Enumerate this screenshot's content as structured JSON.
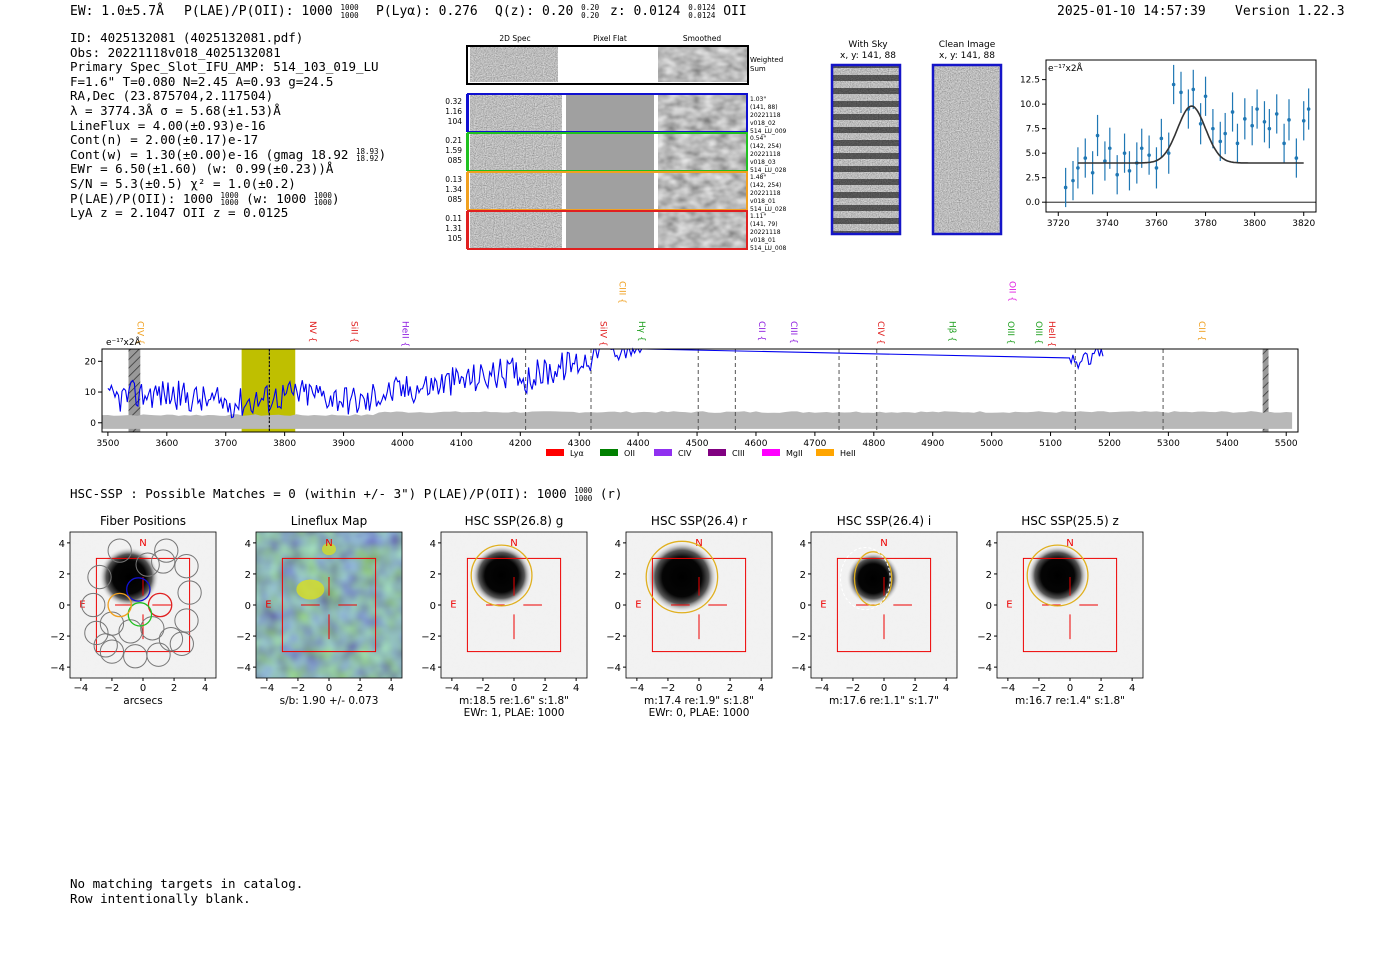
{
  "header": {
    "ew": "EW: 1.0±5.7Å",
    "plae": "P(LAE)/P(OII): 1000",
    "plae_hi": "1000",
    "plae_lo": "1000",
    "plya": "P(Lyα): 0.276",
    "qz": "Q(z): 0.20",
    "qz_hi": "0.20",
    "qz_lo": "0.20",
    "z": "z: 0.0124",
    "z_hi": "0.0124",
    "z_lo": "0.0124",
    "z_line": "OII",
    "timestamp": "2025-01-10 14:57:39",
    "version": "Version 1.22.3"
  },
  "info": {
    "id": "ID: 4025132081 (4025132081.pdf)",
    "obs": "Obs: 20221118v018_4025132081",
    "primary": "Primary Spec_Slot_IFU_AMP: 514_103_019_LU",
    "params": "F=1.6\"  T=0.080  N=2.45  A=0.93  g=24.5",
    "radec": "RA,Dec (23.875704,2.117504)",
    "lambda": "λ = 3774.3Å   σ = 5.68(±1.53)Å",
    "lineflux": "LineFlux = 4.00(±0.93)e-16",
    "contn": "Cont(n) = 2.00(±0.17)e-17",
    "contw": "Cont(w) = 1.30(±0.00)e-16 (gmag 18.92",
    "contw_hi": "18.93",
    "contw_lo": "18.92",
    "ewr": "EWr = 6.50(±1.60) (w: 0.99(±0.23))Å",
    "sn": "S/N = 5.3(±0.5)  χ² = 1.0(±0.2)",
    "plae": "P(LAE)/P(OII): 1000",
    "plae_hi": "1000",
    "plae_lo": "1000",
    "plae_w": "(w: 1000",
    "plae_w_hi": "1000",
    "plae_w_lo": "1000",
    "lyaz": "LyA z = 2.1047  OII z = 0.0125"
  },
  "cutouts": {
    "col_2d": "2D Spec",
    "col_flat": "Pixel Flat",
    "col_smooth": "Smoothed",
    "weighted": "Weighted",
    "sum": "Sum",
    "rows": [
      {
        "l1": "0.32",
        "l2": "1.16",
        "l3": "104",
        "r1": "1.03\"",
        "r2": "(141, 88)",
        "r3": "20221118",
        "r4": "v018_02",
        "r5": "514_LU_009",
        "color": "#1010d0"
      },
      {
        "l1": "0.21",
        "l2": "1.59",
        "l3": "085",
        "r1": "0.54\"",
        "r2": "(142, 254)",
        "r3": "20221118",
        "r4": "v018_03",
        "r5": "514_LU_028",
        "color": "#20c020"
      },
      {
        "l1": "0.13",
        "l2": "1.34",
        "l3": "085",
        "r1": "1.48\"",
        "r2": "(142, 254)",
        "r3": "20221118",
        "r4": "v018_01",
        "r5": "514_LU_028",
        "color": "#f0a020"
      },
      {
        "l1": "0.11",
        "l2": "1.31",
        "l3": "105",
        "r1": "1.11\"",
        "r2": "(141, 79)",
        "r3": "20221118",
        "r4": "v018_01",
        "r5": "514_LU_008",
        "color": "#e02020"
      }
    ]
  },
  "sky": {
    "with_sky": "With Sky",
    "with_sky_xy": "x, y: 141, 88",
    "clean": "Clean Image",
    "clean_xy": "x, y: 141, 88"
  },
  "fit_plot": {
    "units": "e⁻¹⁷x2Å",
    "xticks": [
      "3720",
      "3740",
      "3760",
      "3780",
      "3800",
      "3820"
    ],
    "yticks": [
      "0.0",
      "2.5",
      "5.0",
      "7.5",
      "10.0",
      "12.5"
    ]
  },
  "spectrum": {
    "units": "e⁻¹⁷x2Å",
    "xticks": [
      "3500",
      "3600",
      "3700",
      "3800",
      "3900",
      "4000",
      "4100",
      "4200",
      "4300",
      "4400",
      "4500",
      "4600",
      "4700",
      "4800",
      "4900",
      "5000",
      "5100",
      "5200",
      "5300",
      "5400",
      "5500"
    ],
    "yticks": [
      "0",
      "10",
      "20"
    ],
    "line_labels": [
      {
        "t": "CIV",
        "w": 3545,
        "c": "#f0a020",
        "row": 1
      },
      {
        "t": "NV",
        "w": 3838,
        "c": "#e02020",
        "row": 1
      },
      {
        "t": "SiII",
        "w": 3908,
        "c": "#e02020",
        "row": 1
      },
      {
        "t": "HeII",
        "w": 3995,
        "c": "#9020e0",
        "row": 1
      },
      {
        "t": "SiIV",
        "w": 4331,
        "c": "#e02020",
        "row": 1
      },
      {
        "t": "CIII",
        "w": 4363,
        "c": "#f0a020",
        "row": 0
      },
      {
        "t": "Hγ",
        "w": 4396,
        "c": "#20a020",
        "row": 1
      },
      {
        "t": "CII",
        "w": 4600,
        "c": "#9020e0",
        "row": 1
      },
      {
        "t": "CIII",
        "w": 4654,
        "c": "#9020e0",
        "row": 1
      },
      {
        "t": "CIV",
        "w": 4802,
        "c": "#e02020",
        "row": 1
      },
      {
        "t": "Hβ",
        "w": 4923,
        "c": "#20a020",
        "row": 1
      },
      {
        "t": "OII",
        "w": 5025,
        "c": "#e020e0",
        "row": 0
      },
      {
        "t": "OIII",
        "w": 5023,
        "c": "#20a020",
        "row": 1
      },
      {
        "t": "OIII",
        "w": 5070,
        "c": "#20a020",
        "row": 1
      },
      {
        "t": "HeII",
        "w": 5092,
        "c": "#e02020",
        "row": 1
      },
      {
        "t": "CII",
        "w": 5347,
        "c": "#f0a020",
        "row": 1
      }
    ],
    "legend": [
      {
        "t": "Lyα",
        "c": "#ff0000"
      },
      {
        "t": "OII",
        "c": "#008000"
      },
      {
        "t": "CIV",
        "c": "#9030f0"
      },
      {
        "t": "CIII",
        "c": "#800080"
      },
      {
        "t": "MgII",
        "c": "#ff00ff"
      },
      {
        "t": "HeII",
        "c": "#ffa500"
      }
    ]
  },
  "hsc": {
    "summary": "HSC-SSP : Possible Matches = 0 (within +/- 3\")  P(LAE)/P(OII): 1000",
    "summary_hi": "1000",
    "summary_lo": "1000",
    "summary_tail": "(r)",
    "ticks": [
      "−4",
      "−2",
      "0",
      "2",
      "4"
    ],
    "panels": [
      {
        "title": "Fiber Positions",
        "cap1": "arcsecs",
        "cap2": ""
      },
      {
        "title": "Lineflux Map",
        "cap1": "s/b: 1.90 +/- 0.073",
        "cap2": ""
      },
      {
        "title": "HSC SSP(26.8) g",
        "cap1": "m:18.5  re:1.6\"  s:1.8\"",
        "cap2": "EWr: 1, PLAE: 1000"
      },
      {
        "title": "HSC SSP(26.4) r",
        "cap1": "m:17.4  re:1.9\"  s:1.8\"",
        "cap2": "EWr: 0, PLAE: 1000"
      },
      {
        "title": "HSC SSP(26.4) i",
        "cap1": "m:17.6  re:1.1\"  s:1.7\"",
        "cap2": ""
      },
      {
        "title": "HSC SSP(25.5) z",
        "cap1": "m:16.7  re:1.4\"  s:1.8\"",
        "cap2": ""
      }
    ],
    "north": "N",
    "east": "E"
  },
  "footer": {
    "line1": "No matching targets in catalog.",
    "line2": "Row intentionally blank."
  },
  "chart_data": [
    {
      "type": "scatter",
      "title": "",
      "xlabel": "",
      "ylabel": "e⁻¹⁷x2Å",
      "xlim": [
        3715,
        3825
      ],
      "ylim": [
        -1,
        14.5
      ],
      "x": [
        3723,
        3726,
        3728,
        3731,
        3734,
        3736,
        3739,
        3741,
        3744,
        3747,
        3749,
        3752,
        3754,
        3757,
        3760,
        3762,
        3765,
        3767,
        3770,
        3773,
        3775,
        3778,
        3780,
        3783,
        3786,
        3788,
        3791,
        3793,
        3796,
        3799,
        3801,
        3804,
        3806,
        3809,
        3812,
        3814,
        3817,
        3820,
        3822
      ],
      "y": [
        1.5,
        2.2,
        3.5,
        4.5,
        3.0,
        6.8,
        4.2,
        5.5,
        2.8,
        5.0,
        3.2,
        4.0,
        5.5,
        4.8,
        3.5,
        6.5,
        5.0,
        12.0,
        11.2,
        9.5,
        11.5,
        8.0,
        10.8,
        7.5,
        6.2,
        7.0,
        9.2,
        6.0,
        8.5,
        7.8,
        9.5,
        8.2,
        7.5,
        9.0,
        6.0,
        8.4,
        4.5,
        8.3,
        9.5
      ],
      "yerr": [
        2.0,
        2.0,
        2.1,
        2.0,
        2.2,
        2.1,
        2.0,
        2.1,
        2.0,
        2.0,
        2.0,
        2.1,
        2.0,
        2.0,
        2.1,
        2.0,
        2.1,
        2.0,
        2.1,
        2.0,
        2.0,
        2.1,
        2.0,
        2.0,
        2.0,
        2.1,
        2.0,
        2.0,
        2.1,
        2.0,
        2.0,
        2.1,
        2.0,
        2.0,
        2.0,
        2.1,
        2.0,
        2.0,
        2.1
      ],
      "model": {
        "continuum": 4.0,
        "center": 3774.3,
        "sigma": 5.68,
        "peak": 9.8
      }
    },
    {
      "type": "line",
      "title": "",
      "xlabel": "",
      "ylabel": "e⁻¹⁷x2Å",
      "xlim": [
        3490,
        5520
      ],
      "ylim": [
        -3,
        24
      ],
      "shaded_regions": [
        [
          3535,
          3555
        ],
        [
          3727,
          3818
        ],
        [
          5460,
          5470
        ]
      ],
      "dashed_lines": [
        3774,
        4209,
        4320,
        4502,
        4565,
        4741,
        4805,
        5142,
        5291
      ]
    }
  ]
}
